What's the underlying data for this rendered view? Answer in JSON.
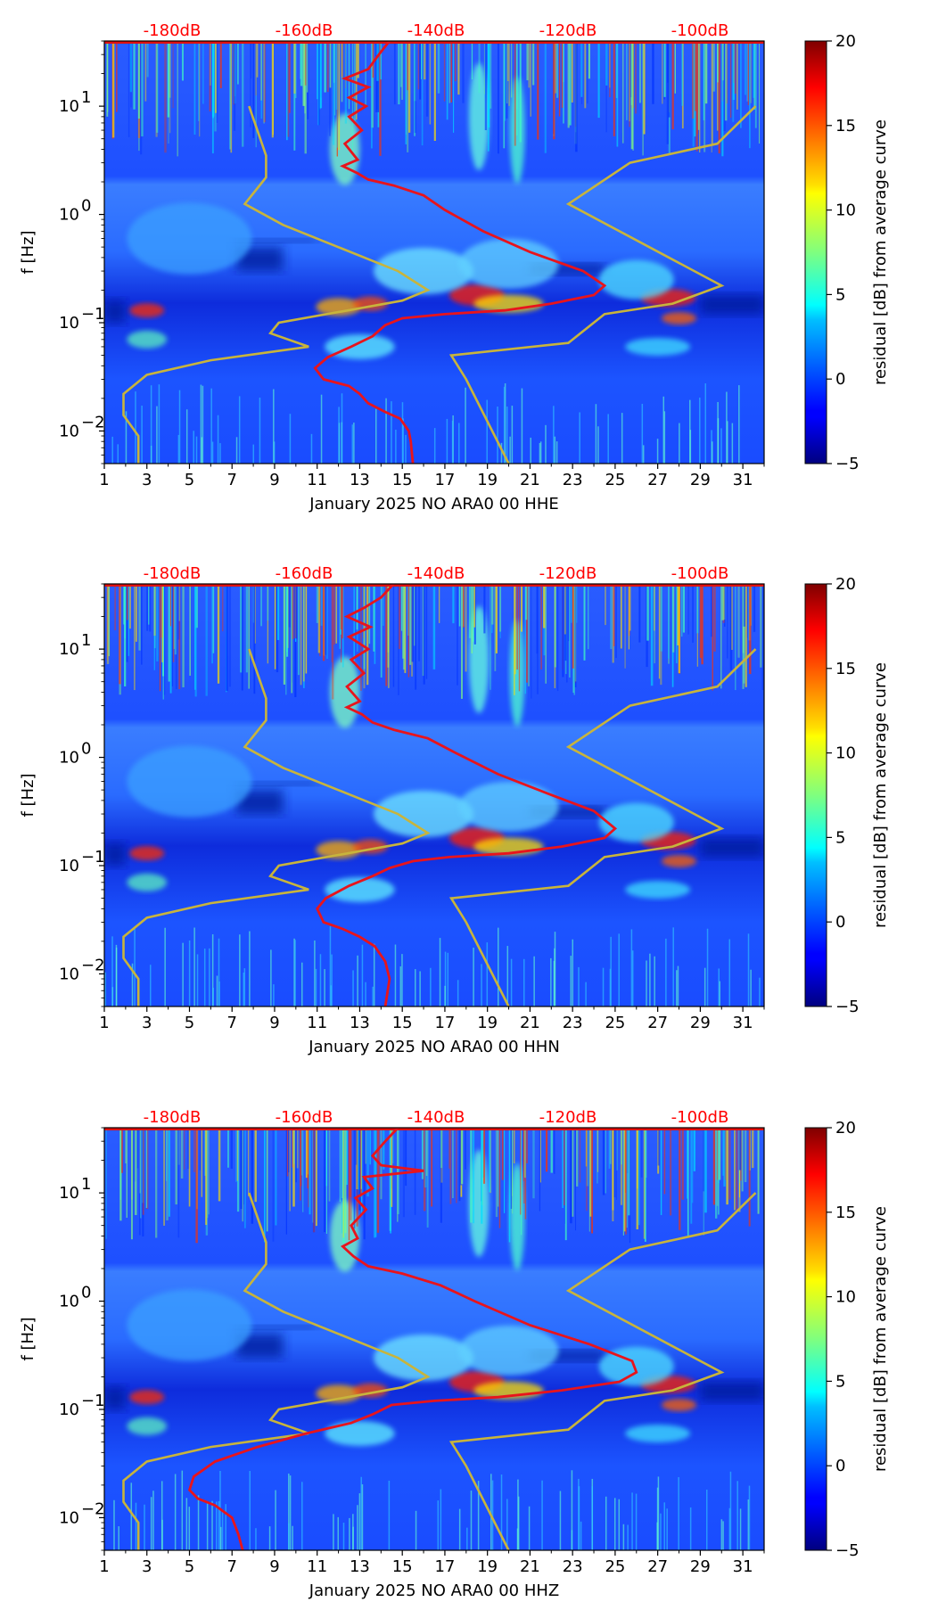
{
  "chart_data": [
    {
      "type": "heatmap",
      "station": "January 2025 NO ARA0 00 HHE",
      "xlabel": "January 2025 NO ARA0 00 HHE",
      "ylabel": "f [Hz]",
      "x_ticks": [
        "1",
        "3",
        "5",
        "7",
        "9",
        "11",
        "13",
        "15",
        "17",
        "19",
        "21",
        "23",
        "25",
        "27",
        "29",
        "31"
      ],
      "y_ticks": [
        {
          "base": "10",
          "exp": "1",
          "value": 10
        },
        {
          "base": "10",
          "exp": "0",
          "value": 1
        },
        {
          "base": "10",
          "exp": "−1",
          "value": 0.1
        },
        {
          "base": "10",
          "exp": "−2",
          "value": 0.01
        }
      ],
      "ylim": [
        0.005,
        40
      ],
      "xlim": [
        1,
        32
      ],
      "db_ticks": [
        "-180dB",
        "-160dB",
        "-140dB",
        "-120dB",
        "-100dB"
      ],
      "colorbar": {
        "label": "residual [dB] from average curve",
        "ticks": [
          "20",
          "15",
          "10",
          "5",
          "0",
          "−5"
        ],
        "range": [
          -5,
          20
        ]
      },
      "noise_models": {
        "color": "#c8b43c",
        "low": [
          [
            7.8,
            10
          ],
          [
            8.6,
            3.5
          ],
          [
            8.6,
            2.2
          ],
          [
            7.6,
            1.25
          ],
          [
            9.4,
            0.8
          ],
          [
            14.8,
            0.3
          ],
          [
            16.2,
            0.2
          ],
          [
            15,
            0.16
          ],
          [
            9.2,
            0.1
          ],
          [
            8.8,
            0.08
          ],
          [
            10.6,
            0.06
          ],
          [
            6,
            0.045
          ],
          [
            3,
            0.033
          ],
          [
            1.9,
            0.022
          ],
          [
            1.9,
            0.014
          ],
          [
            2.6,
            0.009
          ],
          [
            2.6,
            0.005
          ]
        ],
        "high": [
          [
            31.6,
            10
          ],
          [
            29.8,
            4.5
          ],
          [
            25.7,
            3
          ],
          [
            22.8,
            1.25
          ],
          [
            30,
            0.22
          ],
          [
            27.7,
            0.15
          ],
          [
            24.5,
            0.12
          ],
          [
            22.8,
            0.065
          ],
          [
            17.3,
            0.05
          ],
          [
            18,
            0.03
          ],
          [
            20,
            0.005
          ]
        ]
      },
      "median_db_curve": {
        "color": "#e8141c",
        "points": [
          [
            14.4,
            40
          ],
          [
            13.9,
            30
          ],
          [
            13.4,
            22
          ],
          [
            12.3,
            18
          ],
          [
            13.4,
            15
          ],
          [
            12.5,
            12
          ],
          [
            13.3,
            10
          ],
          [
            12.5,
            8
          ],
          [
            13.1,
            6
          ],
          [
            12.3,
            4.5
          ],
          [
            12.9,
            3.2
          ],
          [
            12.2,
            2.8
          ],
          [
            12.9,
            2.4
          ],
          [
            13.4,
            2.1
          ],
          [
            14.6,
            1.85
          ],
          [
            16,
            1.5
          ],
          [
            17,
            1.1
          ],
          [
            18.8,
            0.7
          ],
          [
            21,
            0.45
          ],
          [
            23.5,
            0.3
          ],
          [
            24.5,
            0.22
          ],
          [
            24,
            0.18
          ],
          [
            22,
            0.15
          ],
          [
            19.8,
            0.13
          ],
          [
            17,
            0.12
          ],
          [
            15,
            0.11
          ],
          [
            14.2,
            0.095
          ],
          [
            13.6,
            0.075
          ],
          [
            12.6,
            0.06
          ],
          [
            11.5,
            0.048
          ],
          [
            10.9,
            0.038
          ],
          [
            11.3,
            0.03
          ],
          [
            12.5,
            0.026
          ],
          [
            13,
            0.022
          ],
          [
            13.4,
            0.018
          ],
          [
            14.2,
            0.015
          ],
          [
            14.9,
            0.013
          ],
          [
            15.3,
            0.01
          ],
          [
            15.4,
            0.008
          ],
          [
            15.5,
            0.005
          ]
        ]
      }
    },
    {
      "type": "heatmap",
      "station": "January 2025 NO ARA0 00 HHN",
      "xlabel": "January 2025 NO ARA0 00 HHN",
      "ylabel": "f [Hz]",
      "x_ticks": [
        "1",
        "3",
        "5",
        "7",
        "9",
        "11",
        "13",
        "15",
        "17",
        "19",
        "21",
        "23",
        "25",
        "27",
        "29",
        "31"
      ],
      "y_ticks": [
        {
          "base": "10",
          "exp": "1",
          "value": 10
        },
        {
          "base": "10",
          "exp": "0",
          "value": 1
        },
        {
          "base": "10",
          "exp": "−1",
          "value": 0.1
        },
        {
          "base": "10",
          "exp": "−2",
          "value": 0.01
        }
      ],
      "ylim": [
        0.005,
        40
      ],
      "xlim": [
        1,
        32
      ],
      "db_ticks": [
        "-180dB",
        "-160dB",
        "-140dB",
        "-120dB",
        "-100dB"
      ],
      "colorbar": {
        "label": "residual [dB] from average curve",
        "ticks": [
          "20",
          "15",
          "10",
          "5",
          "0",
          "−5"
        ],
        "range": [
          -5,
          20
        ]
      },
      "noise_models": {
        "color": "#c8b43c",
        "low": [
          [
            7.8,
            10
          ],
          [
            8.6,
            3.5
          ],
          [
            8.6,
            2.2
          ],
          [
            7.6,
            1.25
          ],
          [
            9.4,
            0.8
          ],
          [
            14.8,
            0.3
          ],
          [
            16.2,
            0.2
          ],
          [
            15,
            0.16
          ],
          [
            9.2,
            0.1
          ],
          [
            8.8,
            0.08
          ],
          [
            10.6,
            0.06
          ],
          [
            6,
            0.045
          ],
          [
            3,
            0.033
          ],
          [
            1.9,
            0.022
          ],
          [
            1.9,
            0.014
          ],
          [
            2.6,
            0.009
          ],
          [
            2.6,
            0.005
          ]
        ],
        "high": [
          [
            31.6,
            10
          ],
          [
            29.8,
            4.5
          ],
          [
            25.7,
            3
          ],
          [
            22.8,
            1.25
          ],
          [
            30,
            0.22
          ],
          [
            27.7,
            0.15
          ],
          [
            24.5,
            0.12
          ],
          [
            22.8,
            0.065
          ],
          [
            17.3,
            0.05
          ],
          [
            18,
            0.03
          ],
          [
            20,
            0.005
          ]
        ]
      },
      "median_db_curve": {
        "color": "#e8141c",
        "points": [
          [
            14.6,
            40
          ],
          [
            14,
            30
          ],
          [
            13.2,
            24
          ],
          [
            12.4,
            20
          ],
          [
            13.5,
            16
          ],
          [
            12.5,
            13
          ],
          [
            13.4,
            10
          ],
          [
            12.6,
            8
          ],
          [
            13.2,
            6
          ],
          [
            12.4,
            4.5
          ],
          [
            13,
            3.3
          ],
          [
            12.4,
            2.9
          ],
          [
            13.1,
            2.5
          ],
          [
            13.6,
            2.1
          ],
          [
            14.6,
            1.8
          ],
          [
            16.2,
            1.5
          ],
          [
            17.5,
            1.1
          ],
          [
            19.5,
            0.7
          ],
          [
            22,
            0.45
          ],
          [
            24,
            0.32
          ],
          [
            25,
            0.22
          ],
          [
            24.5,
            0.18
          ],
          [
            22.5,
            0.15
          ],
          [
            20,
            0.13
          ],
          [
            17.2,
            0.12
          ],
          [
            15.5,
            0.11
          ],
          [
            14.4,
            0.095
          ],
          [
            13.6,
            0.08
          ],
          [
            12.5,
            0.065
          ],
          [
            11.4,
            0.05
          ],
          [
            11,
            0.04
          ],
          [
            11.3,
            0.03
          ],
          [
            12.2,
            0.026
          ],
          [
            13,
            0.022
          ],
          [
            13.7,
            0.018
          ],
          [
            14.2,
            0.013
          ],
          [
            14.4,
            0.009
          ],
          [
            14.2,
            0.005
          ]
        ]
      }
    },
    {
      "type": "heatmap",
      "station": "January 2025 NO ARA0 00 HHZ",
      "xlabel": "January 2025 NO ARA0 00 HHZ",
      "ylabel": "f [Hz]",
      "x_ticks": [
        "1",
        "3",
        "5",
        "7",
        "9",
        "11",
        "13",
        "15",
        "17",
        "19",
        "21",
        "23",
        "25",
        "27",
        "29",
        "31"
      ],
      "y_ticks": [
        {
          "base": "10",
          "exp": "1",
          "value": 10
        },
        {
          "base": "10",
          "exp": "0",
          "value": 1
        },
        {
          "base": "10",
          "exp": "−1",
          "value": 0.1
        },
        {
          "base": "10",
          "exp": "−2",
          "value": 0.01
        }
      ],
      "ylim": [
        0.005,
        40
      ],
      "xlim": [
        1,
        32
      ],
      "db_ticks": [
        "-180dB",
        "-160dB",
        "-140dB",
        "-120dB",
        "-100dB"
      ],
      "colorbar": {
        "label": "residual [dB] from average curve",
        "ticks": [
          "20",
          "15",
          "10",
          "5",
          "0",
          "−5"
        ],
        "range": [
          -5,
          20
        ]
      },
      "noise_models": {
        "color": "#c8b43c",
        "low": [
          [
            7.8,
            10
          ],
          [
            8.6,
            3.5
          ],
          [
            8.6,
            2.2
          ],
          [
            7.6,
            1.25
          ],
          [
            9.4,
            0.8
          ],
          [
            14.8,
            0.3
          ],
          [
            16.2,
            0.2
          ],
          [
            15,
            0.16
          ],
          [
            9.2,
            0.1
          ],
          [
            8.8,
            0.08
          ],
          [
            10.6,
            0.06
          ],
          [
            6,
            0.045
          ],
          [
            3,
            0.033
          ],
          [
            1.9,
            0.022
          ],
          [
            1.9,
            0.014
          ],
          [
            2.6,
            0.009
          ],
          [
            2.6,
            0.005
          ]
        ],
        "high": [
          [
            31.6,
            10
          ],
          [
            29.8,
            4.5
          ],
          [
            25.7,
            3
          ],
          [
            22.8,
            1.25
          ],
          [
            30,
            0.22
          ],
          [
            27.7,
            0.15
          ],
          [
            24.5,
            0.12
          ],
          [
            22.8,
            0.065
          ],
          [
            17.3,
            0.05
          ],
          [
            18,
            0.03
          ],
          [
            20,
            0.005
          ]
        ]
      },
      "median_db_curve": {
        "color": "#e8141c",
        "points": [
          [
            14.8,
            40
          ],
          [
            14.2,
            30
          ],
          [
            13.6,
            22
          ],
          [
            14,
            18
          ],
          [
            16,
            16
          ],
          [
            13.2,
            14
          ],
          [
            13.6,
            11
          ],
          [
            12.8,
            9
          ],
          [
            13.3,
            7
          ],
          [
            12.6,
            5
          ],
          [
            12.9,
            3.8
          ],
          [
            12.2,
            3.2
          ],
          [
            12.7,
            2.6
          ],
          [
            13.4,
            2.1
          ],
          [
            15,
            1.8
          ],
          [
            16.8,
            1.4
          ],
          [
            18.4,
            1
          ],
          [
            21,
            0.6
          ],
          [
            23.8,
            0.4
          ],
          [
            25.8,
            0.28
          ],
          [
            26,
            0.22
          ],
          [
            25.2,
            0.18
          ],
          [
            22.5,
            0.15
          ],
          [
            19.5,
            0.13
          ],
          [
            16.5,
            0.12
          ],
          [
            14.5,
            0.11
          ],
          [
            13.6,
            0.09
          ],
          [
            12.6,
            0.075
          ],
          [
            10.5,
            0.06
          ],
          [
            8.2,
            0.045
          ],
          [
            6.2,
            0.033
          ],
          [
            5.2,
            0.024
          ],
          [
            5,
            0.018
          ],
          [
            5.4,
            0.015
          ],
          [
            6.2,
            0.013
          ],
          [
            7,
            0.01
          ],
          [
            7.3,
            0.007
          ],
          [
            7.5,
            0.005
          ]
        ]
      }
    }
  ]
}
